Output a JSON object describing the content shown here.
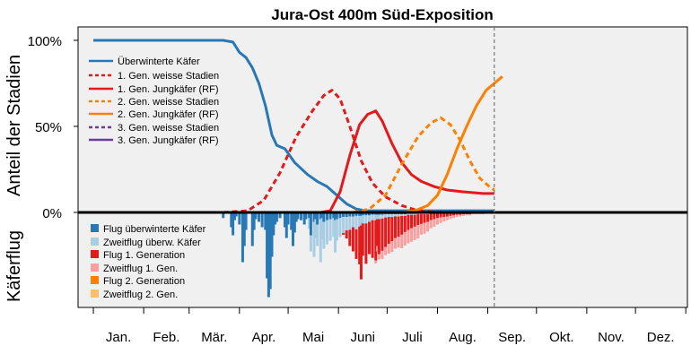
{
  "chart_data": {
    "type": "line",
    "title": "Jura-Ost 400m Süd-Exposition",
    "ylabel_top": "Anteil der Stadien",
    "ylabel_bottom": "Käferflug",
    "y_ticks": [
      "100%",
      "50%",
      "0%"
    ],
    "y_tick_values": [
      100,
      50,
      0
    ],
    "ylim_top": [
      0,
      100
    ],
    "x_unit": "day_of_year",
    "xlim": [
      -5,
      366
    ],
    "months": [
      "Jan.",
      "Feb.",
      "Mär.",
      "Apr.",
      "Mai",
      "Juni",
      "Juli",
      "Aug.",
      "Sep.",
      "Okt.",
      "Nov.",
      "Dez."
    ],
    "today_marker_day": 247,
    "colors": {
      "c_ow": "#2878b5",
      "c_ow_light": "#a9cde3",
      "c_g1": "#e31a1c",
      "c_g1_light": "#f8a0a0",
      "c_g2": "#ff7f00",
      "c_g2_light": "#fdbf6f",
      "c_g3": "#6a3d9a",
      "panel_bg": "#f0f0f0"
    },
    "series": [
      {
        "name": "Überwinterte Käfer",
        "color": "#2878b5",
        "dash": false,
        "points": [
          [
            0,
            100
          ],
          [
            80,
            100
          ],
          [
            86,
            99
          ],
          [
            90,
            93
          ],
          [
            94,
            90
          ],
          [
            98,
            84
          ],
          [
            102,
            75
          ],
          [
            106,
            62
          ],
          [
            110,
            45
          ],
          [
            113,
            39
          ],
          [
            118,
            37
          ],
          [
            124,
            29
          ],
          [
            132,
            22
          ],
          [
            138,
            18
          ],
          [
            144,
            15
          ],
          [
            150,
            10
          ],
          [
            156,
            5
          ],
          [
            162,
            2
          ],
          [
            168,
            1
          ],
          [
            247,
            1
          ]
        ]
      },
      {
        "name": "1. Gen. weisse Stadien",
        "color": "#e31a1c",
        "dash": true,
        "points": [
          [
            80,
            0
          ],
          [
            95,
            1
          ],
          [
            105,
            7
          ],
          [
            115,
            23
          ],
          [
            125,
            44
          ],
          [
            135,
            59
          ],
          [
            142,
            68
          ],
          [
            147,
            71
          ],
          [
            152,
            66
          ],
          [
            158,
            50
          ],
          [
            165,
            30
          ],
          [
            172,
            17
          ],
          [
            180,
            9
          ],
          [
            190,
            4
          ],
          [
            200,
            1
          ],
          [
            215,
            0
          ],
          [
            247,
            0
          ]
        ]
      },
      {
        "name": "1. Gen. Jungkäfer (RF)",
        "color": "#e31a1c",
        "dash": false,
        "points": [
          [
            0,
            0
          ],
          [
            140,
            0
          ],
          [
            146,
            1
          ],
          [
            152,
            12
          ],
          [
            158,
            33
          ],
          [
            164,
            51
          ],
          [
            169,
            57
          ],
          [
            174,
            59
          ],
          [
            178,
            53
          ],
          [
            184,
            40
          ],
          [
            190,
            29
          ],
          [
            196,
            22
          ],
          [
            202,
            18
          ],
          [
            210,
            15
          ],
          [
            218,
            13
          ],
          [
            228,
            12
          ],
          [
            240,
            11
          ],
          [
            247,
            11
          ]
        ]
      },
      {
        "name": "2. Gen. weisse Stadien",
        "color": "#ff7f00",
        "dash": true,
        "points": [
          [
            160,
            0
          ],
          [
            170,
            2
          ],
          [
            180,
            10
          ],
          [
            190,
            28
          ],
          [
            200,
            44
          ],
          [
            208,
            52
          ],
          [
            214,
            55
          ],
          [
            220,
            51
          ],
          [
            226,
            42
          ],
          [
            232,
            30
          ],
          [
            238,
            20
          ],
          [
            244,
            15
          ],
          [
            247,
            13
          ]
        ]
      },
      {
        "name": "2. Gen. Jungkäfer (RF)",
        "color": "#ff7f00",
        "dash": false,
        "points": [
          [
            0,
            0
          ],
          [
            190,
            0
          ],
          [
            198,
            1
          ],
          [
            206,
            4
          ],
          [
            212,
            10
          ],
          [
            218,
            22
          ],
          [
            224,
            37
          ],
          [
            230,
            50
          ],
          [
            236,
            62
          ],
          [
            242,
            71
          ],
          [
            247,
            75
          ],
          [
            252,
            79
          ]
        ]
      },
      {
        "name": "3. Gen. weisse Stadien",
        "color": "#6a3d9a",
        "dash": true,
        "points": []
      },
      {
        "name": "3. Gen. Jungkäfer (RF)",
        "color": "#6a3d9a",
        "dash": false,
        "points": []
      }
    ],
    "flight_legend": [
      {
        "name": "Flug überwinterte Käfer",
        "color": "#2878b5"
      },
      {
        "name": "Zweitflug überw. Käfer",
        "color": "#a9cde3"
      },
      {
        "name": "Flug 1. Generation",
        "color": "#e31a1c"
      },
      {
        "name": "Zweitflug 1. Gen.",
        "color": "#f8a0a0"
      },
      {
        "name": "Flug 2. Generation",
        "color": "#ff7f00"
      },
      {
        "name": "Zweitflug 2. Gen.",
        "color": "#fdbf6f"
      }
    ],
    "flight_bars": [
      {
        "day": 80,
        "ow": 8
      },
      {
        "day": 85,
        "ow": 25
      },
      {
        "day": 86,
        "ow": 40
      },
      {
        "day": 87,
        "ow": 12
      },
      {
        "day": 88,
        "ow": 5
      },
      {
        "day": 90,
        "ow": 20
      },
      {
        "day": 92,
        "ow": 90
      },
      {
        "day": 93,
        "ow": 60
      },
      {
        "day": 94,
        "ow": 30
      },
      {
        "day": 98,
        "ow": 60
      },
      {
        "day": 99,
        "ow": 30
      },
      {
        "day": 100,
        "ow": 10
      },
      {
        "day": 102,
        "ow": 15
      },
      {
        "day": 104,
        "ow": 25
      },
      {
        "day": 106,
        "ow": 30
      },
      {
        "day": 107,
        "ow": 120
      },
      {
        "day": 108,
        "ow": 155
      },
      {
        "day": 109,
        "ow": 140
      },
      {
        "day": 110,
        "ow": 80
      },
      {
        "day": 111,
        "ow": 40
      },
      {
        "day": 112,
        "ow": 20
      },
      {
        "day": 113,
        "ow": 15
      },
      {
        "day": 115,
        "ow": 8
      },
      {
        "day": 118,
        "ow": 25
      },
      {
        "day": 119,
        "ow": 45
      },
      {
        "day": 120,
        "ow": 20
      },
      {
        "day": 122,
        "ow": 30
      },
      {
        "day": 123,
        "ow": 60
      },
      {
        "day": 124,
        "ow": 35
      },
      {
        "day": 125,
        "ow": 15
      },
      {
        "day": 126,
        "ow": 10
      },
      {
        "day": 128,
        "ow": 12
      },
      {
        "day": 130,
        "ow": 20
      },
      {
        "day": 131,
        "ow": 10
      },
      {
        "day": 133,
        "ow": 8,
        "owl": 20
      },
      {
        "day": 134,
        "ow": 40,
        "owl": 30
      },
      {
        "day": 136,
        "ow": 15,
        "owl": 65
      },
      {
        "day": 137,
        "ow": 10,
        "owl": 35
      },
      {
        "day": 138,
        "ow": 20,
        "owl": 40
      },
      {
        "day": 140,
        "ow": 10,
        "owl": 80
      },
      {
        "day": 141,
        "ow": 8,
        "owl": 40
      },
      {
        "day": 142,
        "ow": 15,
        "owl": 50
      },
      {
        "day": 144,
        "ow": 12,
        "owl": 45
      },
      {
        "day": 146,
        "ow": 10,
        "owl": 40
      },
      {
        "day": 148,
        "ow": 8,
        "owl": 35
      },
      {
        "day": 149,
        "ow": 12,
        "owl": 60
      },
      {
        "day": 150,
        "ow": 10,
        "owl": 40
      },
      {
        "day": 152,
        "ow": 8,
        "owl": 35
      },
      {
        "day": 154,
        "ow": 6,
        "owl": 30,
        "g1": 3
      },
      {
        "day": 156,
        "ow": 6,
        "owl": 25,
        "g1": 15
      },
      {
        "day": 158,
        "ow": 5,
        "owl": 25,
        "g1": 30
      },
      {
        "day": 160,
        "ow": 5,
        "owl": 20,
        "g1": 45
      },
      {
        "day": 162,
        "ow": 4,
        "owl": 25,
        "g1": 55
      },
      {
        "day": 164,
        "ow": 4,
        "owl": 20,
        "g1": 70
      },
      {
        "day": 165,
        "ow": 4,
        "owl": 18,
        "g1": 100
      },
      {
        "day": 166,
        "ow": 3,
        "owl": 15,
        "g1": 60
      },
      {
        "day": 168,
        "ow": 3,
        "owl": 15,
        "g1": 75
      },
      {
        "day": 170,
        "ow": 3,
        "owl": 12,
        "g1": 60
      },
      {
        "day": 172,
        "ow": 2,
        "owl": 10,
        "g1": 70
      },
      {
        "day": 174,
        "ow": 2,
        "owl": 10,
        "g1": 75,
        "g1l": 5
      },
      {
        "day": 175,
        "ow": 2,
        "owl": 8,
        "g1": 50,
        "g1l": 10
      },
      {
        "day": 176,
        "ow": 2,
        "owl": 8,
        "g1": 65,
        "g1l": 10
      },
      {
        "day": 178,
        "ow": 2,
        "owl": 7,
        "g1": 60,
        "g1l": 15
      },
      {
        "day": 180,
        "ow": 1,
        "owl": 6,
        "g1": 55,
        "g1l": 15
      },
      {
        "day": 182,
        "ow": 1,
        "owl": 5,
        "g1": 50,
        "g1l": 18
      },
      {
        "day": 184,
        "ow": 1,
        "owl": 5,
        "g1": 45,
        "g1l": 20
      },
      {
        "day": 186,
        "ow": 1,
        "owl": 4,
        "g1": 40,
        "g1l": 20
      },
      {
        "day": 188,
        "ow": 1,
        "owl": 4,
        "g1": 38,
        "g1l": 20
      },
      {
        "day": 190,
        "ow": 1,
        "owl": 3,
        "g1": 35,
        "g1l": 25
      },
      {
        "day": 192,
        "ow": 1,
        "owl": 3,
        "g1": 30,
        "g1l": 25
      },
      {
        "day": 194,
        "owl": 2,
        "g1": 28,
        "g1l": 25
      },
      {
        "day": 196,
        "owl": 2,
        "g1": 25,
        "g1l": 25
      },
      {
        "day": 198,
        "owl": 2,
        "g1": 22,
        "g1l": 25
      },
      {
        "day": 200,
        "owl": 1,
        "g1": 20,
        "g1l": 25
      },
      {
        "day": 202,
        "owl": 1,
        "g1": 18,
        "g1l": 20
      },
      {
        "day": 204,
        "owl": 1,
        "g1": 16,
        "g1l": 20
      },
      {
        "day": 206,
        "owl": 1,
        "g1": 14,
        "g1l": 18
      },
      {
        "day": 208,
        "g1": 12,
        "g1l": 15
      },
      {
        "day": 210,
        "g1": 10,
        "g1l": 14
      },
      {
        "day": 212,
        "g1": 8,
        "g1l": 12
      },
      {
        "day": 214,
        "g1": 7,
        "g1l": 10
      },
      {
        "day": 216,
        "g1": 6,
        "g1l": 8
      },
      {
        "day": 218,
        "g1": 5,
        "g1l": 7
      },
      {
        "day": 220,
        "g1": 4,
        "g1l": 6
      },
      {
        "day": 222,
        "g1": 3,
        "g1l": 5
      },
      {
        "day": 224,
        "g1": 2,
        "g1l": 4
      },
      {
        "day": 226,
        "g1": 2,
        "g1l": 3
      },
      {
        "day": 228,
        "g1": 1,
        "g1l": 3
      },
      {
        "day": 230,
        "g1": 1,
        "g1l": 2
      },
      {
        "day": 232,
        "g1": 1,
        "g1l": 2
      },
      {
        "day": 234,
        "g1l": 1
      },
      {
        "day": 236,
        "g1l": 1
      },
      {
        "day": 238,
        "g1l": 1
      },
      {
        "day": 240,
        "g1l": 1
      }
    ]
  }
}
